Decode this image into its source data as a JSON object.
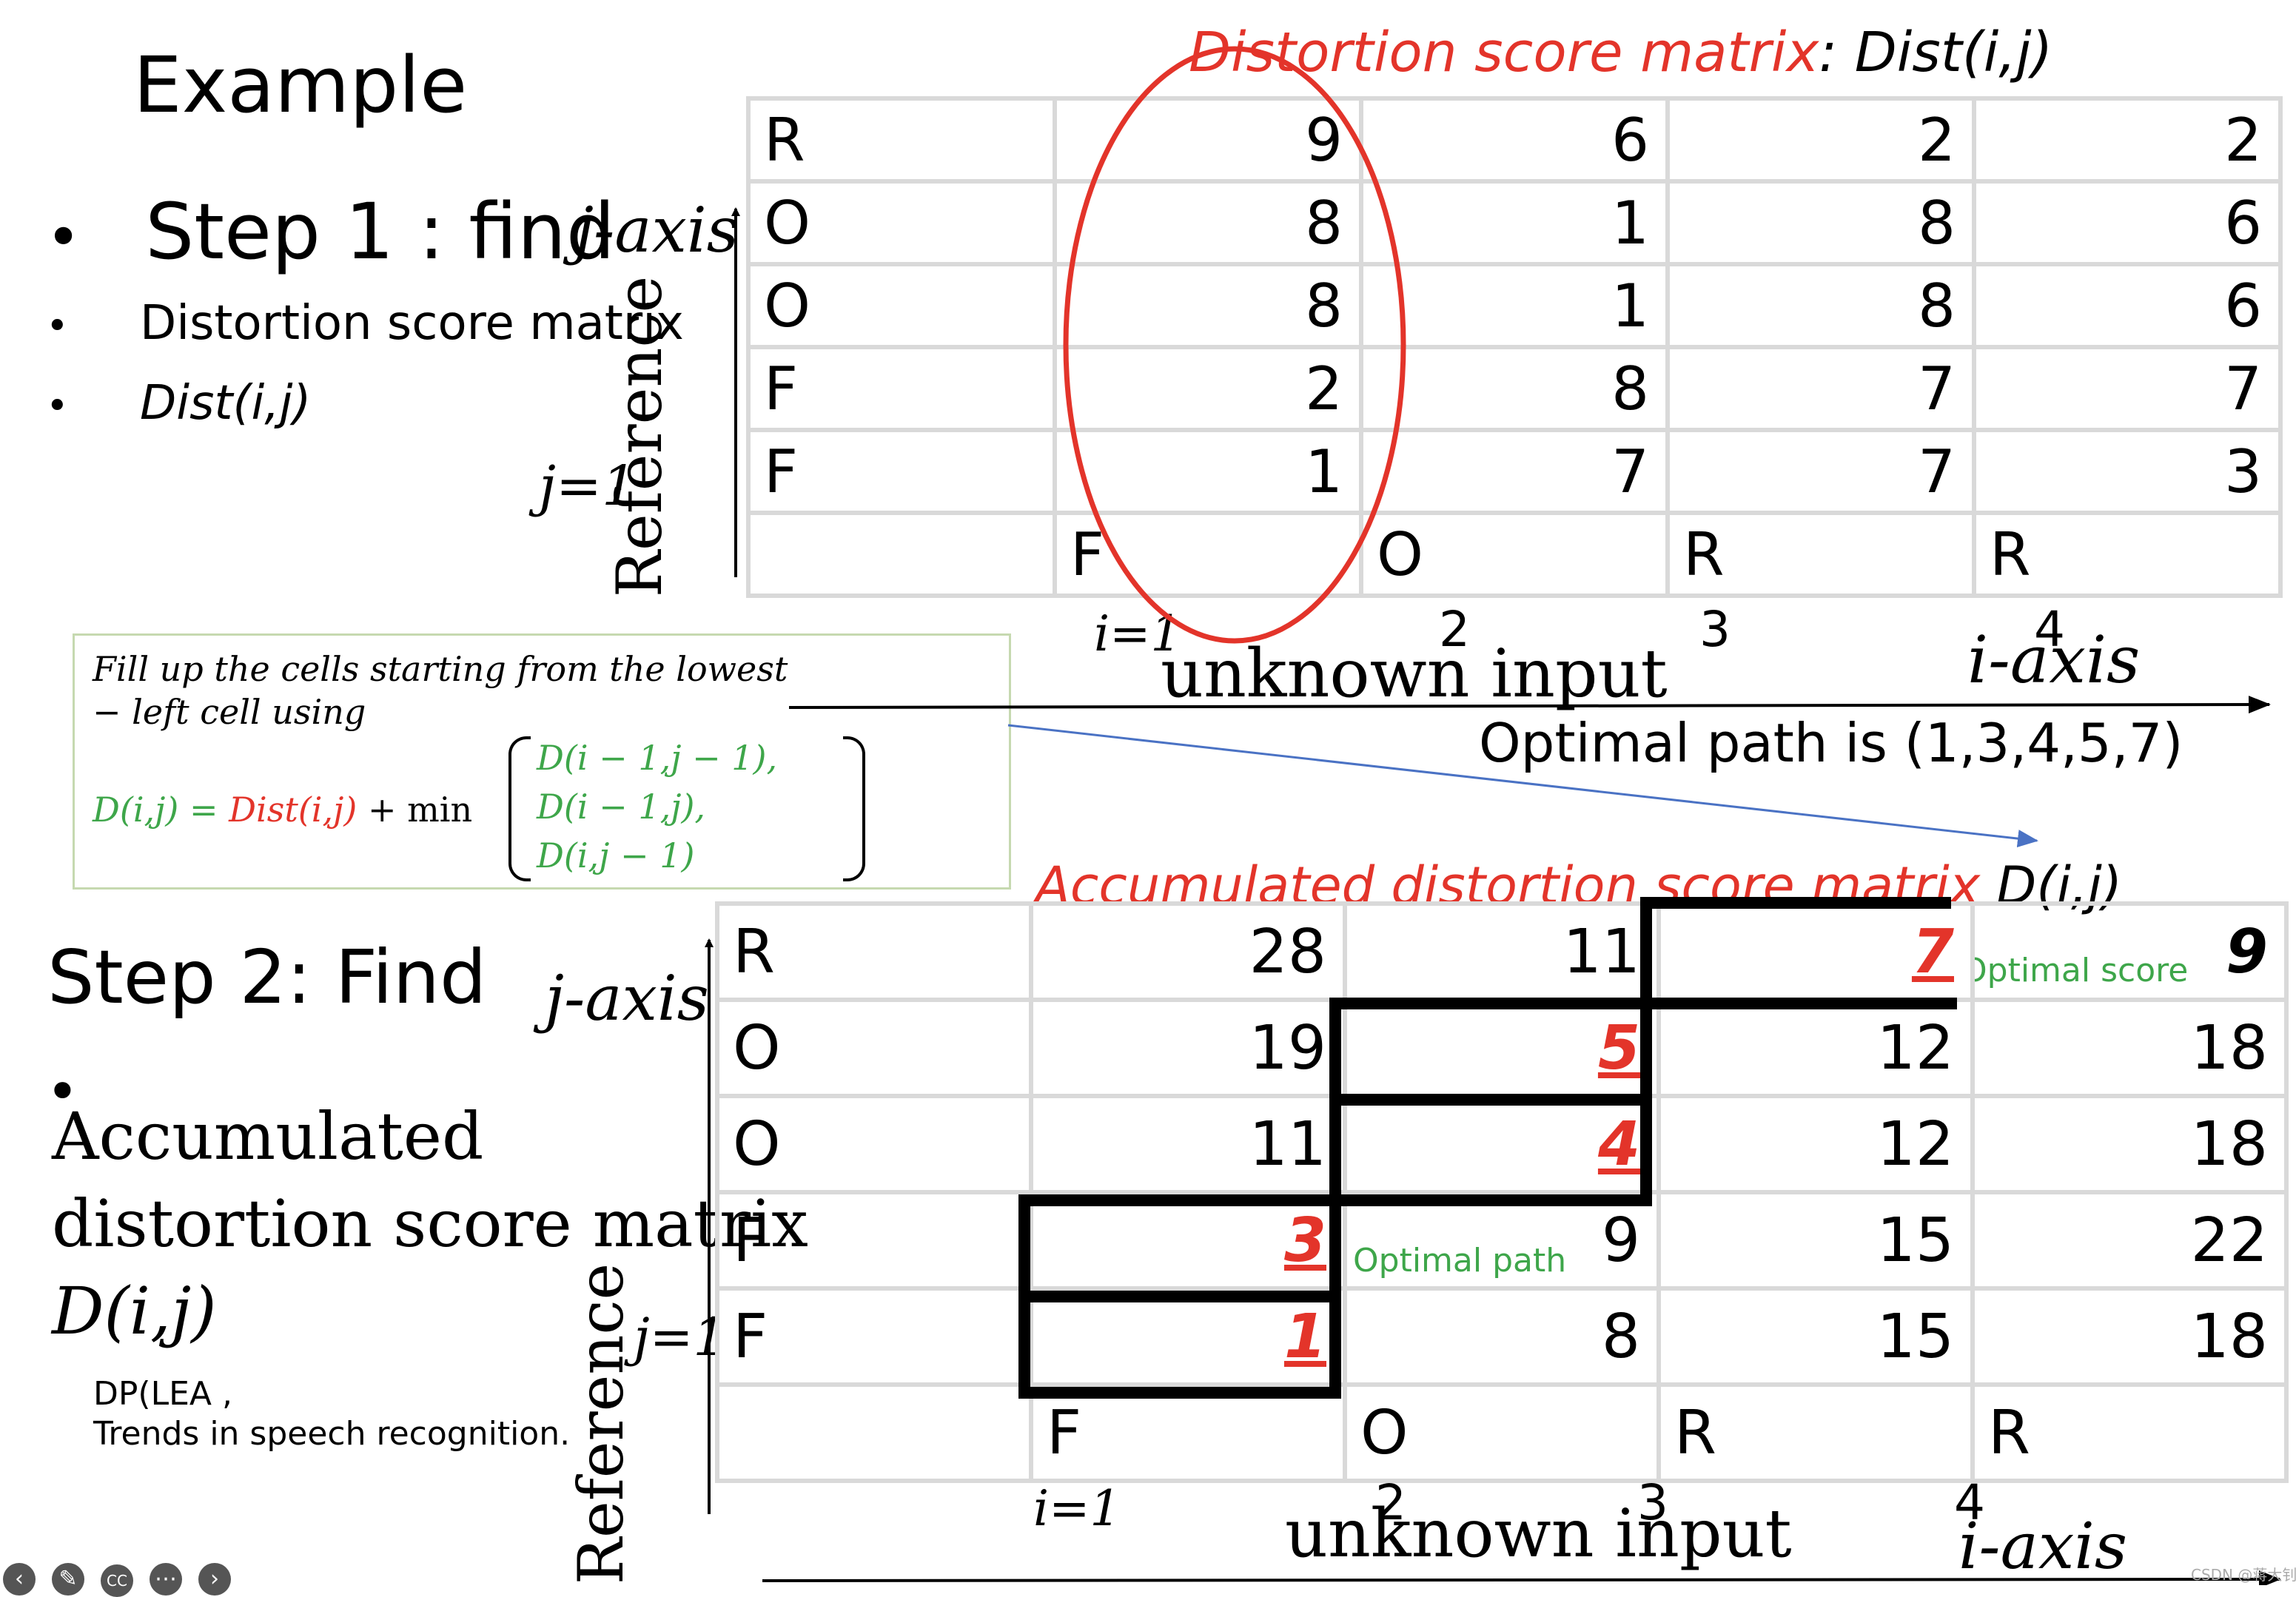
{
  "slide": {
    "title": "Example",
    "step1": "Step 1 : find",
    "bullet_dist_matrix": "Distortion score matrix",
    "bullet_dist_func": "Dist(i,j)",
    "step2": "Step 2: Find",
    "acc_line1": "Accumulated",
    "acc_line2": "distortion score matrix",
    "acc_line3": "D(i,j)",
    "reference_note_line1": "DP(LEA ,",
    "reference_note_line2": "Trends in speech recognition.",
    "bullet_glyph": "•"
  },
  "top_matrix": {
    "title_red": "Distortion score matrix",
    "title_black": ": Dist(i,j)",
    "j_axis_label": "j-axis",
    "reference_label": "Reference",
    "j1_label": "j=1",
    "i1_label": "i=1",
    "input_label": "unknown input",
    "i_axis_label": "i-axis",
    "optimal_path_text": "Optimal path is (1,3,4,5,7)",
    "rows": [
      {
        "label": "R",
        "values": [
          "9",
          "6",
          "2",
          "2"
        ]
      },
      {
        "label": "O",
        "values": [
          "8",
          "1",
          "8",
          "6"
        ]
      },
      {
        "label": "O",
        "values": [
          "8",
          "1",
          "8",
          "6"
        ]
      },
      {
        "label": "F",
        "values": [
          "2",
          "8",
          "7",
          "7"
        ]
      },
      {
        "label": "F",
        "values": [
          "1",
          "7",
          "7",
          "3"
        ]
      }
    ],
    "columns": [
      {
        "letter": "F",
        "index": ""
      },
      {
        "letter": "O",
        "index": "2"
      },
      {
        "letter": "R",
        "index": "3"
      },
      {
        "letter": "R",
        "index": "4"
      }
    ]
  },
  "formula_box": {
    "line1": "Fill up the cells starting from the lowest",
    "line2": "− left  cell using",
    "lhs": "D(i,j) = ",
    "dist": "Dist(i,j)",
    "plus_min": " + min",
    "case1": "D(i − 1,j − 1),",
    "case2": "D(i − 1,j),",
    "case3": "D(i,j − 1)"
  },
  "bottom_matrix": {
    "title_red": "Accumulated distortion score matrix",
    "title_black": " D(i,j)",
    "j_axis_label": "j-axis",
    "reference_label": "Reference",
    "j1_label": "j=1",
    "i1_label": "i=1",
    "input_label": "unknown input",
    "i_axis_label": "i-axis",
    "optimal_score_label": "Optimal score",
    "optimal_path_label": "Optimal path",
    "rows": [
      {
        "label": "R",
        "values": [
          "28",
          "11",
          "7",
          "9"
        ]
      },
      {
        "label": "O",
        "values": [
          "19",
          "5",
          "12",
          "18"
        ]
      },
      {
        "label": "O",
        "values": [
          "11",
          "4",
          "12",
          "18"
        ]
      },
      {
        "label": "F",
        "values": [
          "3",
          "9",
          "15",
          "22"
        ]
      },
      {
        "label": "F",
        "values": [
          "1",
          "8",
          "15",
          "18"
        ]
      }
    ],
    "columns": [
      {
        "letter": "F",
        "index": ""
      },
      {
        "letter": "O",
        "index": "2"
      },
      {
        "letter": "R",
        "index": "3"
      },
      {
        "letter": "R",
        "index": "4"
      }
    ]
  },
  "toolbar": [
    "back-icon",
    "pen-icon",
    "cc-icon",
    "more-icon",
    "forward-icon"
  ],
  "watermark": "CSDN @蒋大钊!",
  "colors": {
    "red": "#e3342a",
    "green": "#3ea64a",
    "blue_arrow": "#4a72c4",
    "grid": "#d9d9d9"
  }
}
